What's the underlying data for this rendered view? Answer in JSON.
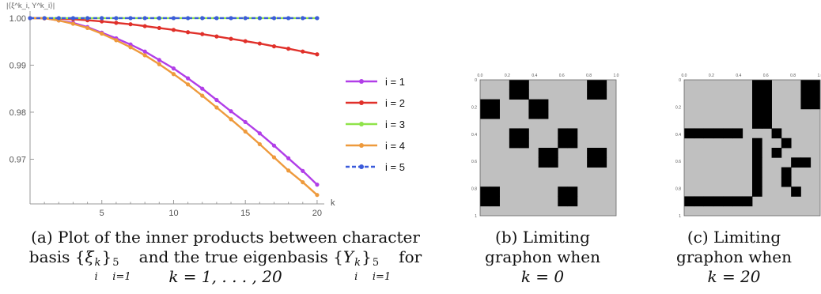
{
  "chart_data": [
    {
      "panel": "a",
      "type": "line",
      "ylabel": "|⟨ξ^k_i, Y^k_i⟩|",
      "xlabel": "k",
      "xlim": [
        0,
        20.5
      ],
      "ylim": [
        0.9605,
        1.0015
      ],
      "xticks": [
        5,
        10,
        15,
        20
      ],
      "yticks": [
        0.97,
        0.98,
        0.99,
        1.0
      ],
      "ytick_labels": [
        "0.97",
        "0.98",
        "0.99",
        "1.00"
      ],
      "grid": false,
      "legend_position": "right",
      "x": [
        0,
        1,
        2,
        3,
        4,
        5,
        6,
        7,
        8,
        9,
        10,
        11,
        12,
        13,
        14,
        15,
        16,
        17,
        18,
        19,
        20
      ],
      "series": [
        {
          "name": "i = 1",
          "color": "#b13ee8",
          "dash": "solid",
          "values": [
            1.0,
            0.99998,
            0.9995,
            0.999,
            0.9981,
            0.9969,
            0.9957,
            0.9944,
            0.9929,
            0.9911,
            0.9893,
            0.9872,
            0.985,
            0.9826,
            0.9802,
            0.9779,
            0.9755,
            0.9729,
            0.9702,
            0.9675,
            0.9646
          ]
        },
        {
          "name": "i = 2",
          "color": "#e0302a",
          "dash": "solid",
          "values": [
            1.0,
            0.99997,
            0.99988,
            0.99975,
            0.99955,
            0.9993,
            0.999,
            0.9987,
            0.9983,
            0.9979,
            0.9975,
            0.997,
            0.9966,
            0.9961,
            0.9956,
            0.9951,
            0.9946,
            0.994,
            0.9935,
            0.9929,
            0.9923
          ]
        },
        {
          "name": "i = 3",
          "color": "#8fe34a",
          "dash": "solid",
          "values": [
            1,
            1,
            1,
            1,
            1,
            1,
            1,
            1,
            1,
            1,
            1,
            1,
            1,
            1,
            1,
            1,
            1,
            1,
            1,
            1,
            1
          ]
        },
        {
          "name": "i = 4",
          "color": "#ee9a3c",
          "dash": "solid",
          "values": [
            1.0,
            0.99997,
            0.9995,
            0.9988,
            0.9979,
            0.9967,
            0.9953,
            0.9938,
            0.9921,
            0.9902,
            0.9881,
            0.9859,
            0.9835,
            0.981,
            0.9785,
            0.9759,
            0.9732,
            0.9704,
            0.9676,
            0.9651,
            0.9624
          ]
        },
        {
          "name": "i = 5",
          "color": "#3b5bdb",
          "dash": "dashed",
          "values": [
            1,
            1,
            1,
            1,
            1,
            1,
            1,
            1,
            1,
            1,
            1,
            1,
            1,
            1,
            1,
            1,
            1,
            1,
            1,
            1,
            1
          ]
        }
      ]
    },
    {
      "panel": "b",
      "type": "heatmap",
      "tick_labels": [
        "0",
        "0.2",
        "0.4",
        "0.6",
        "0.8",
        "1"
      ],
      "top_tick_labels": [
        "0.0",
        "0.2",
        "0.4",
        "0.6",
        "0.8",
        "1.0"
      ],
      "colors": {
        "0": "#c0c0c0",
        "1": "#000000"
      },
      "matrix": [
        [
          0,
          0,
          0,
          1,
          1,
          0,
          0,
          0,
          0,
          0,
          0,
          1,
          1,
          0
        ],
        [
          0,
          0,
          0,
          1,
          1,
          0,
          0,
          0,
          0,
          0,
          0,
          1,
          1,
          0
        ],
        [
          1,
          1,
          0,
          0,
          0,
          1,
          1,
          0,
          0,
          0,
          0,
          0,
          0,
          0
        ],
        [
          1,
          1,
          0,
          0,
          0,
          1,
          1,
          0,
          0,
          0,
          0,
          0,
          0,
          0
        ],
        [
          0,
          0,
          0,
          0,
          0,
          0,
          0,
          0,
          0,
          0,
          0,
          0,
          0,
          0
        ],
        [
          0,
          0,
          0,
          1,
          1,
          0,
          0,
          0,
          1,
          1,
          0,
          0,
          0,
          0
        ],
        [
          0,
          0,
          0,
          1,
          1,
          0,
          0,
          0,
          1,
          1,
          0,
          0,
          0,
          0
        ],
        [
          0,
          0,
          0,
          0,
          0,
          0,
          1,
          1,
          0,
          0,
          0,
          1,
          1,
          0
        ],
        [
          0,
          0,
          0,
          0,
          0,
          0,
          1,
          1,
          0,
          0,
          0,
          1,
          1,
          0
        ],
        [
          0,
          0,
          0,
          0,
          0,
          0,
          0,
          0,
          0,
          0,
          0,
          0,
          0,
          0
        ],
        [
          0,
          0,
          0,
          0,
          0,
          0,
          0,
          0,
          0,
          0,
          0,
          0,
          0,
          0
        ],
        [
          1,
          1,
          0,
          0,
          0,
          0,
          0,
          0,
          1,
          1,
          0,
          0,
          0,
          0
        ],
        [
          1,
          1,
          0,
          0,
          0,
          0,
          0,
          0,
          1,
          1,
          0,
          0,
          0,
          0
        ],
        [
          0,
          0,
          0,
          0,
          0,
          0,
          0,
          0,
          0,
          0,
          0,
          0,
          0,
          0
        ]
      ]
    },
    {
      "panel": "c",
      "type": "heatmap",
      "tick_labels": [
        "0",
        "0.2",
        "0.4",
        "0.6",
        "0.8",
        "1"
      ],
      "top_tick_labels": [
        "0.0",
        "0.2",
        "0.4",
        "0.6",
        "0.8",
        "1.0"
      ],
      "colors": {
        "0": "#c0c0c0",
        "1": "#000000"
      },
      "matrix": [
        [
          0,
          0,
          0,
          0,
          0,
          0,
          0,
          1,
          1,
          0,
          0,
          0,
          1,
          1
        ],
        [
          0,
          0,
          0,
          0,
          0,
          0,
          0,
          1,
          1,
          0,
          0,
          0,
          1,
          1
        ],
        [
          0,
          0,
          0,
          0,
          0,
          0,
          0,
          1,
          1,
          0,
          0,
          0,
          1,
          1
        ],
        [
          0,
          0,
          0,
          0,
          0,
          0,
          0,
          1,
          1,
          0,
          0,
          0,
          0,
          0
        ],
        [
          0,
          0,
          0,
          0,
          0,
          0,
          0,
          1,
          1,
          0,
          0,
          0,
          0,
          0
        ],
        [
          1,
          1,
          1,
          1,
          1,
          1,
          0,
          0,
          0,
          1,
          0,
          0,
          0,
          0
        ],
        [
          0,
          0,
          0,
          0,
          0,
          0,
          0,
          1,
          0,
          0,
          1,
          0,
          0,
          0
        ],
        [
          0,
          0,
          0,
          0,
          0,
          0,
          0,
          1,
          0,
          1,
          0,
          0,
          0,
          0
        ],
        [
          0,
          0,
          0,
          0,
          0,
          0,
          0,
          1,
          0,
          0,
          0,
          1,
          1,
          0
        ],
        [
          0,
          0,
          0,
          0,
          0,
          0,
          0,
          1,
          0,
          0,
          1,
          0,
          0,
          0
        ],
        [
          0,
          0,
          0,
          0,
          0,
          0,
          0,
          1,
          0,
          0,
          1,
          0,
          0,
          0
        ],
        [
          0,
          0,
          0,
          0,
          0,
          0,
          0,
          1,
          0,
          0,
          0,
          1,
          0,
          0
        ],
        [
          1,
          1,
          1,
          1,
          1,
          1,
          1,
          0,
          0,
          0,
          0,
          0,
          0,
          0
        ],
        [
          0,
          0,
          0,
          0,
          0,
          0,
          0,
          0,
          0,
          0,
          0,
          0,
          0,
          0
        ]
      ]
    }
  ],
  "captions": {
    "a": {
      "line1": "(a) Plot of the inner products between character",
      "line2_pre": "basis {",
      "line2_xi": "ξ",
      "line2_xi_sup": "k",
      "line2_xi_sub": "i",
      "line2_mid": "}",
      "line2_mid_sup": "5",
      "line2_mid_sub": "i=1",
      "line2_mid2": " and the true eigenbasis {",
      "line2_y": "Y",
      "line2_y_sup": "k",
      "line2_y_sub": "i",
      "line2_end": "}",
      "line2_end_sup": "5",
      "line2_end_sub": "i=1",
      "line2_for": " for",
      "line3": "k = 1, . . . , 20"
    },
    "b": {
      "line1": "(b) Limiting",
      "line2": "graphon when",
      "line3": "k = 0"
    },
    "c": {
      "line1": "(c) Limiting",
      "line2": "graphon when",
      "line3": "k = 20"
    }
  }
}
